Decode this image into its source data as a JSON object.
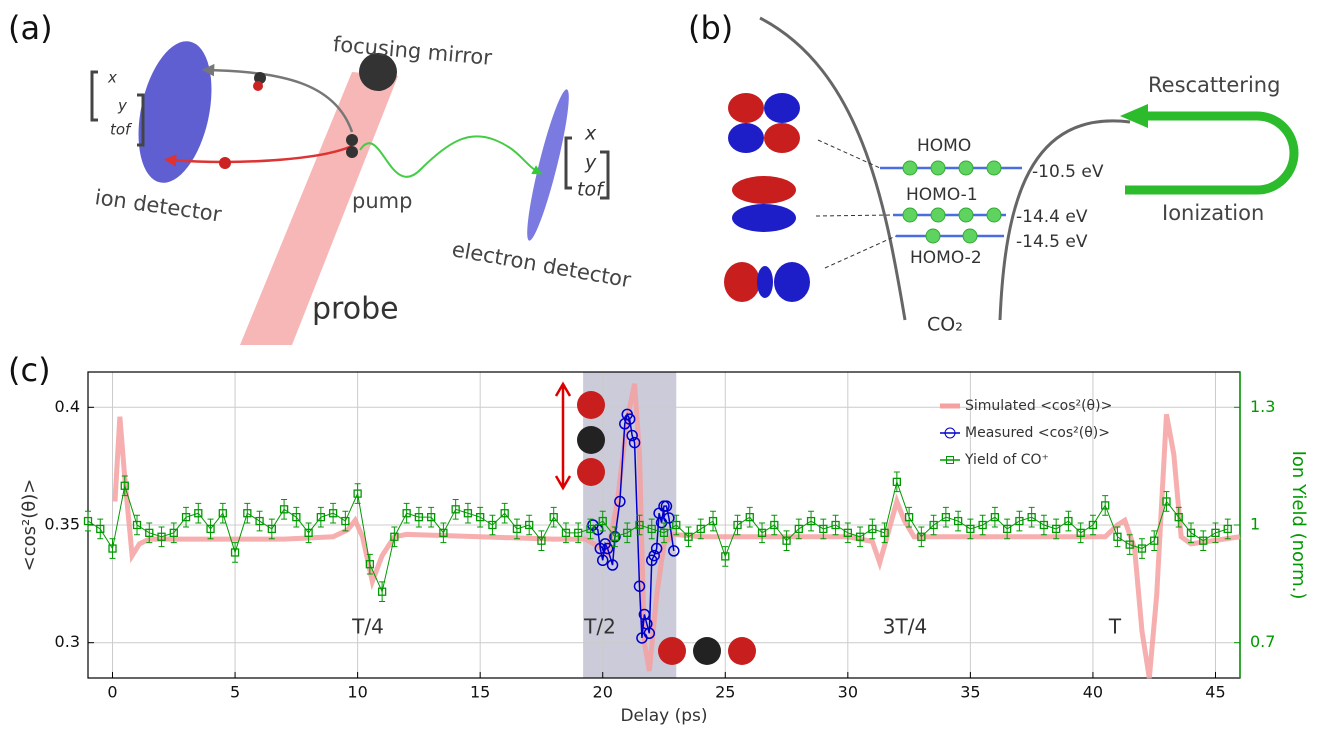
{
  "panel_a": {
    "label": "(a)",
    "focusing_mirror": "focusing mirror",
    "ion_detector": "ion detector",
    "pump": "pump",
    "probe": "probe",
    "electron_detector": "electron detector",
    "ion_coords": [
      "x",
      "y",
      "tof"
    ],
    "electron_coords": [
      "x",
      "y",
      "tof"
    ]
  },
  "panel_b": {
    "label": "(b)",
    "rescattering": "Rescattering",
    "ionization": "Ionization",
    "levels": [
      {
        "name": "HOMO",
        "energy": "-10.5 eV"
      },
      {
        "name": "HOMO-1",
        "energy": "-14.4 eV"
      },
      {
        "name": "HOMO-2",
        "energy": "-14.5 eV"
      }
    ],
    "molecule": "CO₂"
  },
  "panel_c": {
    "label": "(c)"
  },
  "chart_data": {
    "type": "line",
    "x_label": "Delay (ps)",
    "y_label": "<cos²(θ)>",
    "y2_label": "Ion Yield (norm.)",
    "xlim": [
      -1,
      46
    ],
    "xticks": [
      0,
      5,
      10,
      15,
      20,
      25,
      30,
      35,
      40,
      45
    ],
    "ylim": [
      0.285,
      0.415
    ],
    "yticks": [
      0.3,
      0.35,
      0.4
    ],
    "y2lim": [
      0.61,
      1.39
    ],
    "y2ticks": [
      0.7,
      1,
      1.3
    ],
    "grid": true,
    "legend": "upper right",
    "shaded_region": [
      19.2,
      23
    ],
    "annotations": [
      "T/4",
      "T/2",
      "3T/4",
      "T"
    ],
    "series": [
      {
        "name": "Simulated <cos²(θ)>",
        "color": "#f4a0a0",
        "x": [
          0.1,
          0.3,
          0.5,
          0.8,
          1.1,
          1.5,
          3,
          5,
          7,
          9,
          9.6,
          9.9,
          10.2,
          10.6,
          11,
          11.5,
          12,
          15,
          18,
          19.3,
          19.8,
          20.2,
          20.6,
          21,
          21.3,
          21.5,
          21.7,
          21.9,
          22.2,
          22.5,
          22.9,
          24,
          27,
          30,
          31,
          31.3,
          31.6,
          32,
          32.3,
          32.7,
          35,
          38,
          40.5,
          41,
          41.3,
          41.7,
          42,
          42.3,
          42.6,
          43,
          43.3,
          43.6,
          44,
          46
        ],
        "values": [
          0.36,
          0.396,
          0.37,
          0.337,
          0.342,
          0.344,
          0.344,
          0.344,
          0.344,
          0.345,
          0.348,
          0.352,
          0.345,
          0.326,
          0.337,
          0.345,
          0.346,
          0.345,
          0.344,
          0.344,
          0.341,
          0.338,
          0.36,
          0.395,
          0.41,
          0.38,
          0.3,
          0.288,
          0.32,
          0.342,
          0.346,
          0.345,
          0.345,
          0.345,
          0.343,
          0.334,
          0.345,
          0.36,
          0.352,
          0.345,
          0.345,
          0.345,
          0.345,
          0.35,
          0.352,
          0.34,
          0.305,
          0.285,
          0.32,
          0.397,
          0.38,
          0.345,
          0.342,
          0.345
        ]
      },
      {
        "name": "Measured <cos²(θ)>",
        "color": "#0000cc",
        "x": [
          19.6,
          19.8,
          19.9,
          20,
          20.1,
          20.2,
          20.4,
          20.5,
          20.7,
          20.9,
          21,
          21.1,
          21.2,
          21.3,
          21.5,
          21.6,
          21.7,
          21.8,
          21.9,
          22,
          22.1,
          22.2,
          22.3,
          22.4,
          22.5,
          22.6,
          22.7,
          22.9
        ],
        "values": [
          0.35,
          0.348,
          0.34,
          0.335,
          0.342,
          0.34,
          0.333,
          0.345,
          0.36,
          0.393,
          0.397,
          0.395,
          0.388,
          0.385,
          0.324,
          0.302,
          0.312,
          0.308,
          0.304,
          0.335,
          0.337,
          0.34,
          0.355,
          0.351,
          0.358,
          0.358,
          0.353,
          0.339
        ]
      },
      {
        "name": "Yield of CO⁺",
        "color": "#009900",
        "axis": "y2",
        "error": 0.025,
        "x": [
          -1,
          -0.5,
          0,
          0.5,
          1,
          1.5,
          2,
          2.5,
          3,
          3.5,
          4,
          4.5,
          5,
          5.5,
          6,
          6.5,
          7,
          7.5,
          8,
          8.5,
          9,
          9.5,
          10,
          10.5,
          11,
          11.5,
          12,
          12.5,
          13,
          13.5,
          14,
          14.5,
          15,
          15.5,
          16,
          16.5,
          17,
          17.5,
          18,
          18.5,
          19,
          19.5,
          20,
          20.5,
          21,
          21.5,
          22,
          22.5,
          23,
          23.5,
          24,
          24.5,
          25,
          25.5,
          26,
          26.5,
          27,
          27.5,
          28,
          28.5,
          29,
          29.5,
          30,
          30.5,
          31,
          31.5,
          32,
          32.5,
          33,
          33.5,
          34,
          34.5,
          35,
          35.5,
          36,
          36.5,
          37,
          37.5,
          38,
          38.5,
          39,
          39.5,
          40,
          40.5,
          41,
          41.5,
          42,
          42.5,
          43,
          43.5,
          44,
          44.5,
          45,
          45.5
        ],
        "values": [
          1.01,
          0.99,
          0.94,
          1.1,
          1,
          0.98,
          0.97,
          0.98,
          1.02,
          1.03,
          0.99,
          1.03,
          0.93,
          1.03,
          1.01,
          0.99,
          1.04,
          1.02,
          0.98,
          1.02,
          1.03,
          1.01,
          1.08,
          0.9,
          0.83,
          0.97,
          1.03,
          1.02,
          1.02,
          0.98,
          1.04,
          1.03,
          1.02,
          1,
          1.03,
          0.99,
          1,
          0.96,
          1.02,
          0.98,
          0.98,
          0.99,
          1.01,
          0.97,
          0.98,
          1,
          0.99,
          0.98,
          1,
          0.97,
          0.99,
          1.01,
          0.92,
          1,
          1.02,
          0.98,
          1,
          0.96,
          0.99,
          1.01,
          0.99,
          1,
          0.98,
          0.97,
          0.99,
          0.98,
          1.11,
          1.02,
          0.97,
          1,
          1.02,
          1.01,
          0.99,
          1,
          1.02,
          0.99,
          1.01,
          1.02,
          1,
          0.99,
          1.01,
          0.98,
          1,
          1.05,
          0.97,
          0.95,
          0.94,
          0.96,
          1.06,
          1.02,
          0.98,
          0.96,
          0.98,
          0.99
        ]
      }
    ]
  }
}
